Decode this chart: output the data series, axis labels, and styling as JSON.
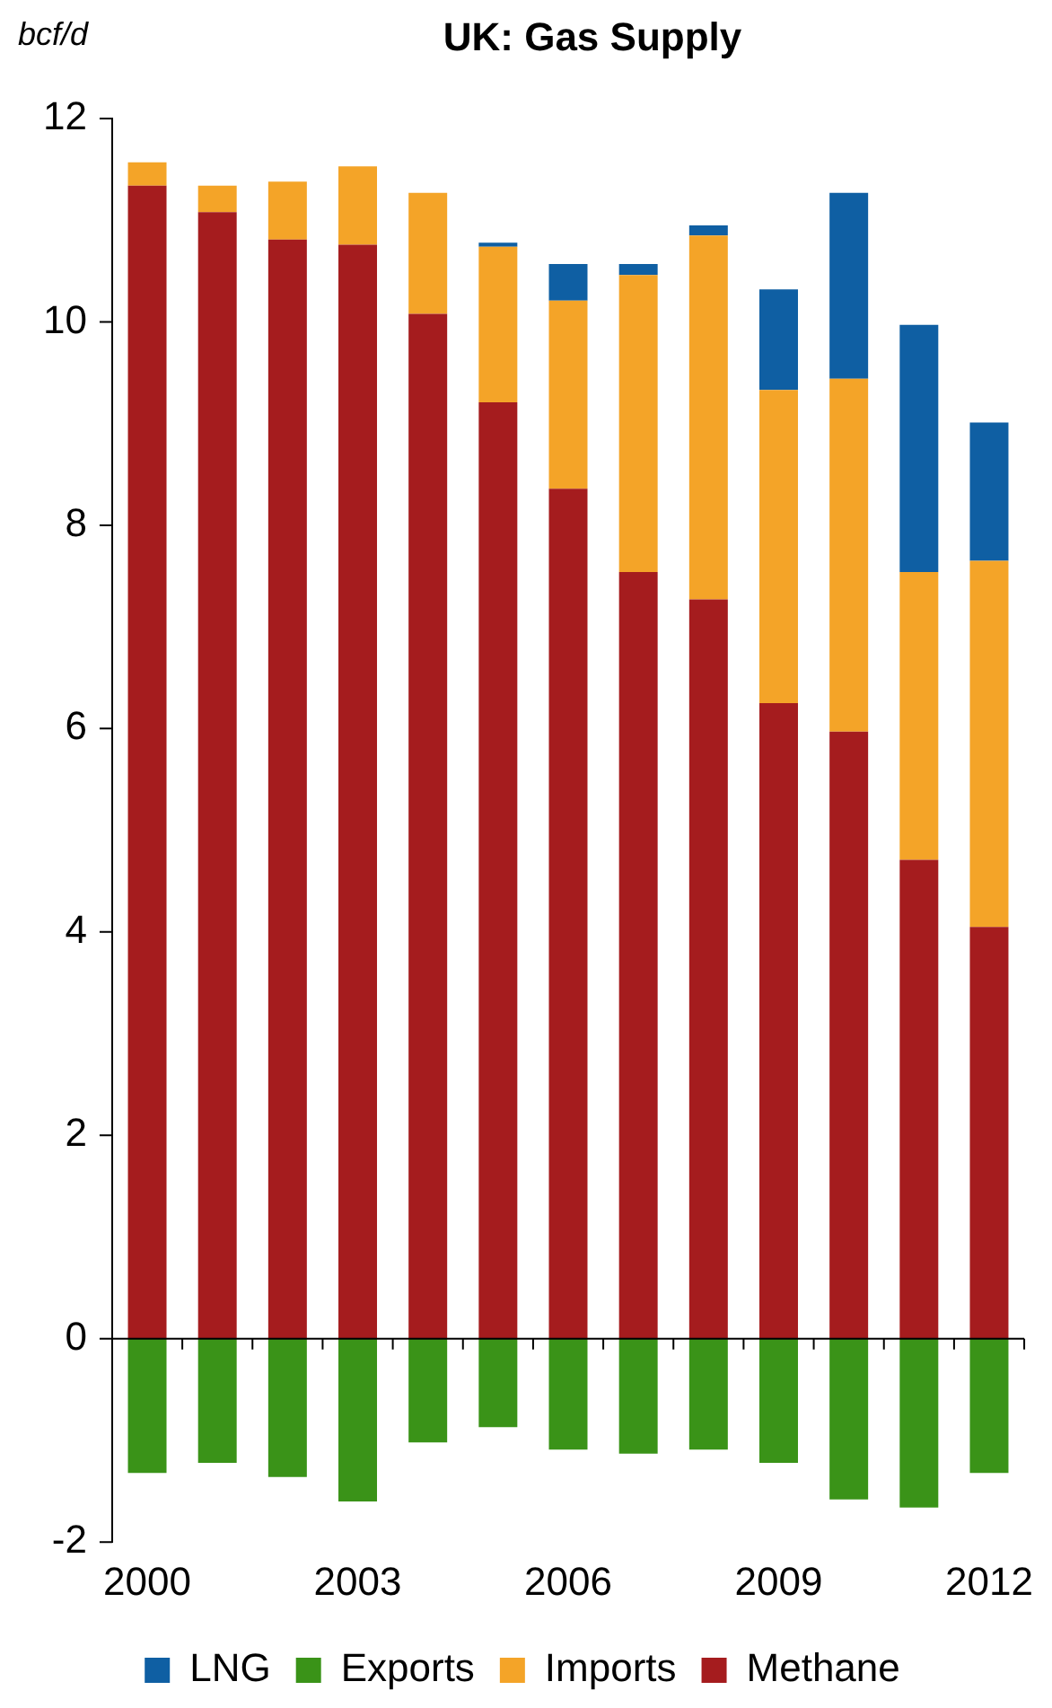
{
  "chart_data": {
    "type": "bar",
    "title": "UK: Gas Supply",
    "ylabel": "bcf/d",
    "categories": [
      "2000",
      null,
      null,
      "2003",
      null,
      null,
      "2006",
      null,
      null,
      "2009",
      null,
      null,
      "2012"
    ],
    "stacked": true,
    "series": [
      {
        "name": "Methane",
        "color": "#a51c1e",
        "values": [
          11.34,
          11.08,
          10.81,
          10.76,
          10.08,
          9.21,
          8.36,
          7.54,
          7.27,
          6.25,
          5.97,
          4.71,
          4.05
        ]
      },
      {
        "name": "Imports",
        "color": "#f4a428",
        "values": [
          0.23,
          0.26,
          0.57,
          0.77,
          1.19,
          1.53,
          1.85,
          2.92,
          3.58,
          3.08,
          3.47,
          2.83,
          3.6
        ]
      },
      {
        "name": "Exports",
        "color": "#3a9318",
        "values": [
          -1.32,
          -1.22,
          -1.36,
          -1.6,
          -1.02,
          -0.87,
          -1.09,
          -1.13,
          -1.09,
          -1.22,
          -1.58,
          -1.66,
          -1.32
        ]
      },
      {
        "name": "LNG",
        "color": "#0f5fa3",
        "values": [
          0,
          0,
          0,
          0,
          0,
          0.04,
          0.36,
          0.11,
          0.1,
          0.99,
          1.83,
          2.43,
          1.36
        ]
      }
    ],
    "ylim": [
      -2,
      12
    ],
    "yticks": [
      -2,
      0,
      2,
      4,
      6,
      8,
      10,
      12
    ],
    "legend": "bottom"
  }
}
